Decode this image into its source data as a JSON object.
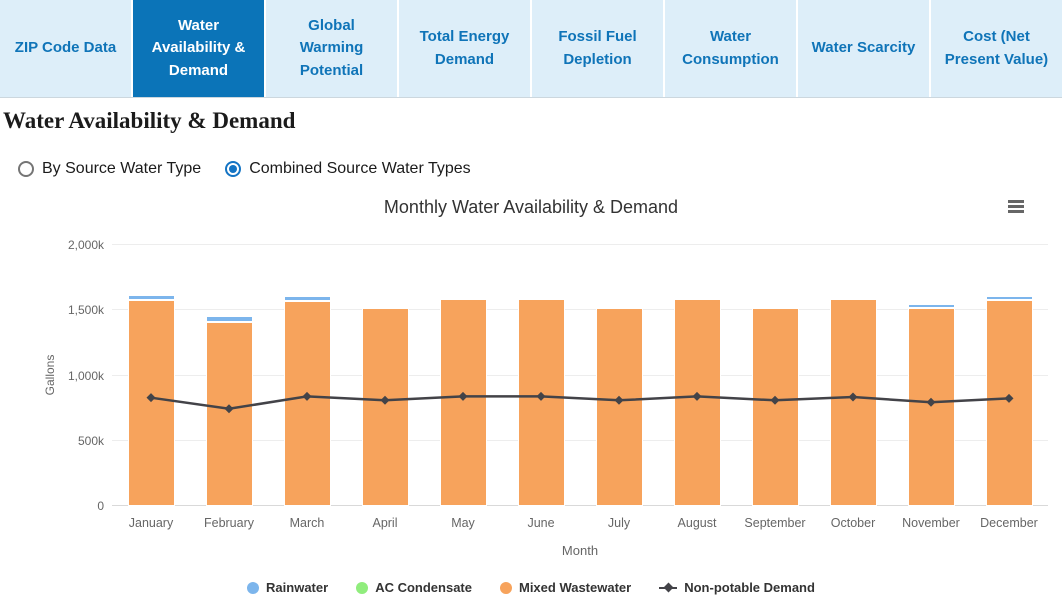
{
  "tabs": [
    {
      "label": "ZIP Code Data",
      "active": false
    },
    {
      "label": "Water Availability & Demand",
      "active": true
    },
    {
      "label": "Global Warming Potential",
      "active": false
    },
    {
      "label": "Total Energy Demand",
      "active": false
    },
    {
      "label": "Fossil Fuel Depletion",
      "active": false
    },
    {
      "label": "Water Consumption",
      "active": false
    },
    {
      "label": "Water Scarcity",
      "active": false
    },
    {
      "label": "Cost (Net Present Value)",
      "active": false
    }
  ],
  "page": {
    "title": "Water Availability & Demand"
  },
  "view_options": {
    "radios": [
      {
        "label": "By Source Water Type",
        "selected": false
      },
      {
        "label": "Combined Source Water Types",
        "selected": true
      }
    ]
  },
  "icons": {
    "chart_menu": "hamburger"
  },
  "chart_data": {
    "type": "bar",
    "stacked": true,
    "title": "Monthly Water Availability & Demand",
    "xlabel": "Month",
    "ylabel": "Gallons",
    "unit": "thousand gallons (k)",
    "ylim": [
      0,
      2000
    ],
    "y_ticks": [
      "0",
      "500k",
      "1,000k",
      "1,500k",
      "2,000k"
    ],
    "grid": true,
    "legend_position": "bottom",
    "categories": [
      "January",
      "February",
      "March",
      "April",
      "May",
      "June",
      "July",
      "August",
      "September",
      "October",
      "November",
      "December"
    ],
    "series": [
      {
        "name": "Rainwater",
        "type": "bar",
        "color": "#7cb5ec",
        "values": [
          40,
          45,
          40,
          0,
          0,
          0,
          0,
          0,
          0,
          0,
          25,
          35
        ]
      },
      {
        "name": "AC Condensate",
        "type": "bar",
        "color": "#90ed7d",
        "values": [
          0,
          0,
          0,
          0,
          0,
          0,
          0,
          0,
          15,
          0,
          0,
          0
        ]
      },
      {
        "name": "Mixed Wastewater",
        "type": "bar",
        "color": "#f7a35c",
        "values": [
          1575,
          1410,
          1570,
          1520,
          1585,
          1585,
          1520,
          1585,
          1520,
          1585,
          1520,
          1575
        ]
      },
      {
        "name": "Non-potable Demand",
        "type": "line",
        "color": "#434348",
        "values": [
          830,
          745,
          840,
          810,
          840,
          840,
          810,
          840,
          810,
          835,
          795,
          825
        ]
      }
    ]
  }
}
